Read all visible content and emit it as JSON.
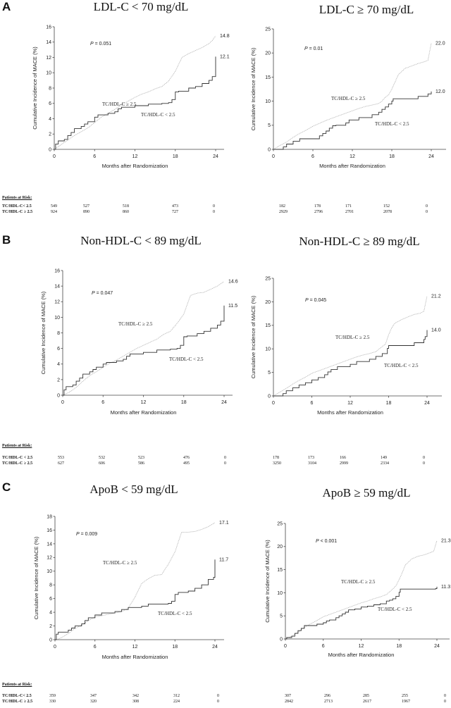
{
  "chart_data": [
    {
      "type": "line",
      "panel": "A",
      "title": "LDL-C < 70 mg/dL",
      "xlabel": "Months after Randomization",
      "ylabel": "Cumulative Incidence of MACE (%)",
      "xlim": [
        0,
        24
      ],
      "ylim": [
        0,
        16
      ],
      "xticks": [
        0,
        6,
        12,
        18,
        24
      ],
      "yticks": [
        0,
        2,
        4,
        6,
        8,
        10,
        12,
        14,
        16
      ],
      "p_value": "P = 0.051",
      "series": [
        {
          "name": "TC/HDL-C ≥ 2.5",
          "style": "dotted",
          "end_label": "14.8",
          "x": [
            0,
            0.5,
            1,
            2,
            3,
            4,
            5,
            6,
            7,
            8,
            9,
            10,
            11,
            12,
            13,
            14,
            15,
            16,
            17,
            18,
            19,
            20,
            21,
            22,
            23,
            23.5,
            24
          ],
          "y": [
            0,
            0.3,
            0.6,
            1.2,
            1.8,
            2.3,
            2.8,
            3.5,
            4.2,
            4.7,
            5.2,
            5.8,
            6.3,
            6.8,
            7.2,
            7.5,
            7.9,
            8.2,
            8.9,
            10.2,
            12.0,
            12.5,
            12.9,
            13.3,
            13.8,
            14.2,
            14.8
          ]
        },
        {
          "name": "TC/HDL-C < 2.5",
          "style": "solid",
          "end_label": "12.1",
          "x": [
            0,
            0.2,
            0.6,
            1.5,
            2,
            2.5,
            3,
            4,
            4.5,
            5,
            6,
            6.5,
            8,
            9,
            9.5,
            10,
            12,
            14,
            16,
            17,
            17.5,
            18,
            18.5,
            20,
            21,
            22,
            23,
            23.5,
            24,
            24
          ],
          "y": [
            0,
            0.7,
            1.1,
            1.3,
            1.8,
            2.2,
            2.7,
            3.0,
            3.3,
            3.6,
            4.2,
            4.5,
            4.7,
            4.9,
            5.3,
            5.5,
            5.7,
            5.9,
            6.0,
            6.1,
            6.5,
            7.5,
            7.6,
            8.0,
            8.2,
            8.6,
            9.0,
            9.5,
            10.0,
            12.1
          ]
        }
      ]
    },
    {
      "type": "line",
      "panel": "A",
      "title": "LDL-C ≥ 70 mg/dL",
      "xlabel": "Months after Randomization",
      "ylabel": "Cumulative Incidence of MACE (%)",
      "xlim": [
        0,
        24
      ],
      "ylim": [
        0,
        25
      ],
      "xticks": [
        0,
        6,
        12,
        18,
        24
      ],
      "yticks": [
        0,
        5,
        10,
        15,
        20,
        25
      ],
      "p_value": "P = 0.01",
      "series": [
        {
          "name": "TC/HDL-C ≥ 2.5",
          "style": "dotted",
          "end_label": "22.0",
          "x": [
            0,
            1,
            2,
            3,
            4,
            5,
            6,
            7,
            8,
            9,
            10,
            11,
            12,
            13,
            14,
            15,
            16,
            16.5,
            17,
            17.5,
            18,
            18.5,
            19,
            20,
            21,
            22,
            23,
            23.5,
            24
          ],
          "y": [
            0,
            0.8,
            1.5,
            2.5,
            3.3,
            4.0,
            4.8,
            5.4,
            6.0,
            6.5,
            7.0,
            7.5,
            8.0,
            8.5,
            8.9,
            9.2,
            9.5,
            10.0,
            10.8,
            11.3,
            12.5,
            14.0,
            15.5,
            16.8,
            17.3,
            17.8,
            18.2,
            18.5,
            22.0
          ]
        },
        {
          "name": "TC/HDL-C < 2.5",
          "style": "solid",
          "end_label": "12.0",
          "x": [
            0,
            1.5,
            1.5,
            2,
            3,
            4,
            7,
            7.5,
            8,
            8.5,
            9,
            9.5,
            10,
            11,
            11.5,
            12,
            13,
            15,
            16,
            16.5,
            17,
            17.5,
            18,
            18.2,
            22,
            23.5,
            24
          ],
          "y": [
            0,
            0,
            0.5,
            1.1,
            1.7,
            2.2,
            2.8,
            3.3,
            3.8,
            4.4,
            4.9,
            5.0,
            5.0,
            5.5,
            6.1,
            6.1,
            6.6,
            7.2,
            7.7,
            8.3,
            8.8,
            9.4,
            10.0,
            10.5,
            11.0,
            11.5,
            12.0
          ]
        }
      ]
    },
    {
      "type": "line",
      "panel": "B",
      "title": "Non-HDL-C < 89 mg/dL",
      "xlabel": "Months after Randomization",
      "ylabel": "Cumulative Incidence of MACE (%)",
      "xlim": [
        0,
        24
      ],
      "ylim": [
        0,
        16
      ],
      "xticks": [
        0,
        6,
        12,
        18,
        24
      ],
      "yticks": [
        0,
        2,
        4,
        6,
        8,
        10,
        12,
        14,
        16
      ],
      "p_value": "P = 0.047",
      "series": [
        {
          "name": "TC/HDL-C ≥ 2.5",
          "style": "dotted",
          "end_label": "14.6",
          "x": [
            0,
            0.5,
            1,
            2,
            3,
            4,
            5,
            6,
            7,
            8,
            9,
            10,
            11,
            12,
            13,
            14,
            15,
            16,
            17,
            18,
            19,
            20,
            21,
            22,
            23,
            24
          ],
          "y": [
            0,
            0.2,
            0.4,
            1.0,
            1.8,
            2.5,
            3.0,
            3.6,
            4.1,
            4.5,
            5.0,
            5.5,
            6.0,
            6.4,
            6.8,
            7.2,
            7.8,
            8.2,
            9.2,
            10.4,
            12.8,
            13.1,
            13.2,
            13.6,
            14.0,
            14.6
          ]
        },
        {
          "name": "TC/HDL-C < 2.5",
          "style": "solid",
          "end_label": "11.5",
          "x": [
            0,
            0.2,
            0.5,
            1.5,
            2,
            2.5,
            3,
            4,
            4.5,
            5,
            6,
            6.5,
            8,
            9,
            9.5,
            10,
            12,
            14,
            16,
            17,
            17.5,
            18,
            18.5,
            20,
            21,
            22,
            23,
            23.5,
            24,
            24
          ],
          "y": [
            0,
            0.7,
            1.1,
            1.3,
            1.8,
            2.2,
            2.7,
            3.0,
            3.3,
            3.6,
            4.0,
            4.2,
            4.4,
            4.6,
            5.0,
            5.3,
            5.5,
            5.8,
            5.9,
            6.0,
            6.4,
            7.5,
            7.6,
            7.9,
            8.2,
            8.6,
            9.0,
            9.5,
            10.0,
            11.5
          ]
        }
      ]
    },
    {
      "type": "line",
      "panel": "B",
      "title": "Non-HDL-C ≥ 89 mg/dL",
      "xlabel": "Months after Randomization",
      "ylabel": "Cumulative Incidence of MACE (%)",
      "xlim": [
        0,
        24
      ],
      "ylim": [
        0,
        25
      ],
      "xticks": [
        0,
        6,
        12,
        18,
        24
      ],
      "yticks": [
        0,
        5,
        10,
        15,
        20,
        25
      ],
      "p_value": "P = 0.045",
      "series": [
        {
          "name": "TC/HDL-C ≥ 2.5",
          "style": "dotted",
          "end_label": "21.2",
          "x": [
            0,
            1,
            2,
            3,
            4,
            5,
            6,
            7,
            8,
            9,
            10,
            11,
            12,
            13,
            14,
            15,
            16,
            17,
            17.5,
            18,
            18.5,
            19,
            20,
            21,
            22,
            23,
            23.5,
            24
          ],
          "y": [
            0,
            0.8,
            1.6,
            2.5,
            3.3,
            4.0,
            4.8,
            5.3,
            5.8,
            6.3,
            6.8,
            7.3,
            7.8,
            8.3,
            8.7,
            9.0,
            9.4,
            10.5,
            11.0,
            13.0,
            14.5,
            15.5,
            16.2,
            16.8,
            17.3,
            17.6,
            18.0,
            21.2
          ]
        },
        {
          "name": "TC/HDL-C < 2.5",
          "style": "solid",
          "end_label": "14.0",
          "x": [
            0,
            1.5,
            1.5,
            2,
            3,
            4,
            5,
            6,
            7,
            8,
            8.5,
            9,
            10,
            12,
            13,
            15,
            16,
            17,
            17.8,
            18,
            22,
            23.5,
            23.7,
            24,
            24
          ],
          "y": [
            0,
            0,
            0.5,
            1.1,
            1.7,
            2.3,
            2.8,
            3.4,
            3.9,
            4.5,
            5.1,
            5.6,
            6.2,
            6.7,
            7.3,
            7.8,
            8.4,
            9.0,
            10.1,
            10.7,
            11.3,
            12.0,
            12.6,
            13.2,
            14.0
          ]
        }
      ]
    },
    {
      "type": "line",
      "panel": "C",
      "title": "ApoB < 59 mg/dL",
      "xlabel": "Months after Randomization",
      "ylabel": "Cumulative Incidence of MACE (%)",
      "xlim": [
        0,
        24
      ],
      "ylim": [
        0,
        18
      ],
      "xticks": [
        0,
        6,
        12,
        18,
        24
      ],
      "yticks": [
        0,
        2,
        4,
        6,
        8,
        10,
        12,
        14,
        16,
        18
      ],
      "p_value": "P = 0.009",
      "series": [
        {
          "name": "TC/HDL-C ≥ 2.5",
          "style": "dotted",
          "end_label": "17.1",
          "x": [
            0,
            0.5,
            1,
            2,
            3,
            4,
            5,
            6,
            7,
            8,
            9,
            10,
            11,
            12,
            13,
            14,
            15,
            16,
            17,
            18,
            19,
            20,
            21,
            22,
            23,
            24
          ],
          "y": [
            0,
            0.1,
            0.3,
            0.9,
            1.6,
            2.1,
            2.8,
            3.3,
            3.5,
            3.7,
            3.9,
            4.1,
            4.6,
            6.2,
            8.2,
            8.9,
            9.4,
            9.5,
            11.0,
            12.8,
            15.7,
            15.7,
            15.8,
            16.1,
            16.5,
            17.1
          ]
        },
        {
          "name": "TC/HDL-C < 2.5",
          "style": "solid",
          "end_label": "11.7",
          "x": [
            0,
            0.2,
            0.5,
            2,
            2.5,
            3,
            4,
            4.5,
            5,
            6,
            7,
            9,
            10,
            11,
            13,
            14,
            17,
            17.5,
            18,
            18.5,
            20,
            21,
            22,
            23,
            23.8,
            24,
            24
          ],
          "y": [
            0,
            0.8,
            1.1,
            1.4,
            1.7,
            2.0,
            2.3,
            2.8,
            3.2,
            3.6,
            3.9,
            4.1,
            4.4,
            4.7,
            4.9,
            5.2,
            5.3,
            5.6,
            6.6,
            6.9,
            7.1,
            7.5,
            8.0,
            8.8,
            9.1,
            9.5,
            11.7
          ]
        }
      ]
    },
    {
      "type": "line",
      "panel": "C",
      "title": "ApoB ≥ 59 mg/dL",
      "xlabel": "Months after Randomization",
      "ylabel": "Cumulative Incidence of MACE (%)",
      "xlim": [
        0,
        24
      ],
      "ylim": [
        0,
        25
      ],
      "xticks": [
        0,
        6,
        12,
        18,
        24
      ],
      "yticks": [
        0,
        5,
        10,
        15,
        20,
        25
      ],
      "p_value": "P < 0.001",
      "series": [
        {
          "name": "TC/HDL-C ≥ 2.5",
          "style": "dotted",
          "end_label": "21.3",
          "x": [
            0,
            1,
            2,
            3,
            4,
            5,
            6,
            7,
            8,
            9,
            10,
            11,
            12,
            13,
            14,
            15,
            16,
            17,
            17.5,
            18,
            18.5,
            19,
            20,
            21,
            22,
            23,
            23.5,
            24
          ],
          "y": [
            0,
            0.6,
            1.5,
            2.5,
            3.3,
            4.0,
            4.8,
            5.3,
            5.8,
            6.3,
            6.8,
            7.3,
            7.8,
            8.2,
            8.7,
            9.1,
            9.6,
            10.8,
            11.5,
            12.8,
            14.3,
            16.0,
            17.3,
            17.9,
            18.2,
            18.7,
            19.0,
            21.3
          ]
        },
        {
          "name": "TC/HDL-C < 2.5",
          "style": "solid",
          "end_label": "11.3",
          "x": [
            0,
            0.2,
            1,
            1.5,
            2,
            2.5,
            3,
            4.5,
            5,
            6,
            6.5,
            7,
            8,
            8.5,
            9,
            9.5,
            10,
            11,
            12,
            13,
            14,
            15,
            16,
            16.5,
            17,
            17.5,
            18,
            18.2,
            23.8,
            24
          ],
          "y": [
            0,
            0.3,
            0.6,
            1.2,
            1.8,
            2.3,
            2.9,
            2.9,
            3.2,
            3.5,
            3.9,
            4.1,
            4.6,
            5.0,
            5.4,
            5.8,
            6.3,
            6.5,
            6.9,
            7.1,
            7.4,
            7.6,
            8.2,
            8.4,
            8.7,
            9.2,
            10.1,
            10.8,
            10.9,
            11.3
          ]
        }
      ]
    }
  ],
  "panels": {
    "A": {
      "letter": "A",
      "left_title": "LDL-C < 70 mg/dL",
      "right_title": "LDL-C ≥ 70 mg/dL"
    },
    "B": {
      "letter": "B",
      "left_title": "Non-HDL-C < 89 mg/dL",
      "right_title": "Non-HDL-C ≥ 89 mg/dL"
    },
    "C": {
      "letter": "C",
      "left_title": "ApoB < 59 mg/dL",
      "right_title": "ApoB ≥ 59 mg/dL"
    }
  },
  "risk_tables": [
    {
      "heading": "Patients at Risk:",
      "rows": [
        {
          "label": "TC/HDL-C< 2.5",
          "left": [
            "549",
            "527",
            "518",
            "473",
            "0"
          ],
          "right": [
            "182",
            "178",
            "171",
            "152",
            "0"
          ]
        },
        {
          "label": "TC/HDL-C ≥ 2.5",
          "left": [
            "924",
            "890",
            "860",
            "727",
            "0"
          ],
          "right": [
            "2929",
            "2796",
            "2701",
            "2078",
            "0"
          ]
        }
      ]
    },
    {
      "heading": "Patients at Risk:",
      "rows": [
        {
          "label": "TC/HDL-C < 2.5",
          "left": [
            "553",
            "532",
            "523",
            "476",
            "0"
          ],
          "right": [
            "178",
            "173",
            "166",
            "149",
            "0"
          ]
        },
        {
          "label": "TC/HDL-C  ≥ 2.5",
          "left": [
            "627",
            "606",
            "586",
            "495",
            "0"
          ],
          "right": [
            "3250",
            "3104",
            "2999",
            "2334",
            "0"
          ]
        }
      ]
    },
    {
      "heading": "Patients at Risk:",
      "rows": [
        {
          "label": "TC/HDL-C< 2.5",
          "left": [
            "359",
            "347",
            "342",
            "312",
            "0"
          ],
          "right": [
            "307",
            "296",
            "285",
            "255",
            "0"
          ]
        },
        {
          "label": "TC/HDL-C ≥ 2.5",
          "left": [
            "330",
            "320",
            "308",
            "224",
            "0"
          ],
          "right": [
            "2842",
            "2713",
            "2617",
            "1967",
            "0"
          ]
        }
      ]
    }
  ]
}
